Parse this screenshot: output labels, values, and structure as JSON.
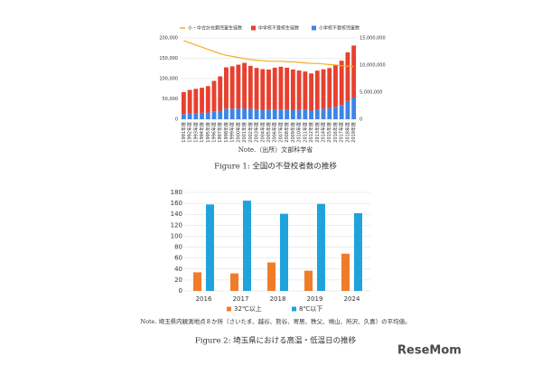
{
  "chart_data": [
    {
      "type": "bar",
      "stacked": true,
      "grid": true,
      "categories": [
        "1991年度",
        "1992年度",
        "1993年度",
        "1994年度",
        "1995年度",
        "1996年度",
        "1997年度",
        "1998年度",
        "1999年度",
        "2000年度",
        "2001年度",
        "2002年度",
        "2003年度",
        "2004年度",
        "2005年度",
        "2006年度",
        "2007年度",
        "2008年度",
        "2009年度",
        "2010年度",
        "2011年度",
        "2012年度",
        "2013年度",
        "2014年度",
        "2015年度",
        "2016年度",
        "2017年度",
        "2018年度",
        "2019年度"
      ],
      "series": [
        {
          "name": "小・中合計在籍児童生徒数",
          "type": "line",
          "axis": "y2",
          "color": "#f2b01e",
          "values": [
            14500000,
            14100000,
            13700000,
            13300000,
            12900000,
            12500000,
            12100000,
            11800000,
            11600000,
            11400000,
            11200000,
            11000000,
            10900000,
            10800000,
            10700000,
            10700000,
            10700000,
            10600000,
            10600000,
            10500000,
            10400000,
            10300000,
            10300000,
            10200000,
            10100000,
            10000000,
            9900000,
            9800000,
            9700000
          ]
        },
        {
          "name": "中学校不登校生徒数",
          "color": "#e8402f",
          "values": [
            54172,
            58421,
            60039,
            61663,
            65022,
            74853,
            84701,
            101675,
            104180,
            107913,
            112211,
            105383,
            102149,
            100040,
            99578,
            103069,
            105328,
            104153,
            100105,
            97428,
            94836,
            91446,
            95442,
            97033,
            98408,
            103235,
            108999,
            119687,
            127922
          ]
        },
        {
          "name": "小学校不登校児童数",
          "color": "#3d85e6",
          "values": [
            12645,
            13710,
            14769,
            15786,
            16569,
            19498,
            20765,
            26017,
            26047,
            26373,
            26511,
            25869,
            24077,
            23318,
            22709,
            23825,
            23927,
            22652,
            22327,
            22463,
            22622,
            21243,
            24175,
            25864,
            27583,
            30448,
            35032,
            44841,
            53350
          ]
        }
      ],
      "ylim": [
        0,
        200000
      ],
      "yticks": [
        0,
        {
          "value": 50000,
          "label": "50,000"
        },
        {
          "value": 100000,
          "label": "100,000"
        },
        {
          "value": 150000,
          "label": "150,000"
        },
        {
          "value": 200000,
          "label": "200,000"
        }
      ],
      "y2lim": [
        0,
        15000000
      ],
      "y2ticks": [
        0,
        {
          "value": 5000000,
          "label": "5,000,000"
        },
        {
          "value": 10000000,
          "label": "10,000,000"
        },
        {
          "value": 15000000,
          "label": "15,000,000"
        }
      ],
      "note": "Note.（出所）文部科学省",
      "caption": "Figure 1: 全国の不登校者数の推移"
    },
    {
      "type": "bar",
      "grid": true,
      "categories": [
        "2016",
        "2017",
        "2018",
        "2019",
        "2024"
      ],
      "series": [
        {
          "name": "32℃以上",
          "color": "#f07c2a",
          "values": [
            34,
            32,
            52,
            37,
            68
          ]
        },
        {
          "name": "8℃以下",
          "color": "#1fa3dd",
          "values": [
            158,
            165,
            141,
            159,
            142
          ]
        }
      ],
      "ylim": [
        0,
        180
      ],
      "yticks": [
        0,
        20,
        40,
        60,
        80,
        100,
        120,
        140,
        160,
        180
      ],
      "note": "Note. 埼玉県内観測地点８か所（さいたま、越谷、熊谷、寄居、秩父、鳩山、所沢、久喜）の平均値。",
      "caption": "Figure 2: 埼玉県における高温・低温日の推移"
    }
  ],
  "logo": "ReseMom"
}
